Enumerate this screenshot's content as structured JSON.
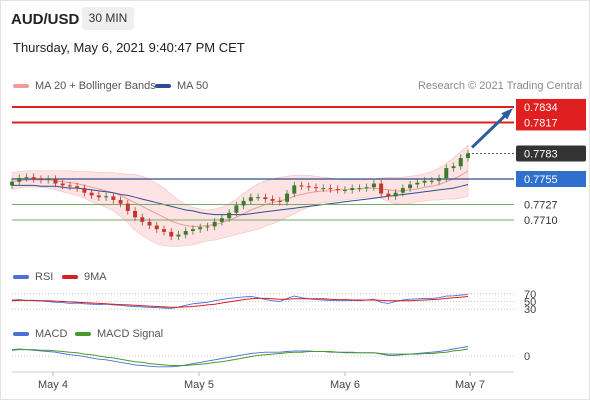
{
  "header": {
    "symbol": "AUD/USD",
    "timeframe": "30 MIN",
    "timestamp": "Thursday, May 6, 2021 9:40:47 PM CET"
  },
  "legends": {
    "main": [
      {
        "label": "MA 20 + Bollinger Bands",
        "color": "#f09a9a"
      },
      {
        "label": "MA 50",
        "color": "#2e4e8f"
      }
    ],
    "rsi": [
      {
        "label": "RSI",
        "color": "#4a6fd6"
      },
      {
        "label": "9MA",
        "color": "#d62020"
      }
    ],
    "macd": [
      {
        "label": "MACD",
        "color": "#4a6fd6"
      },
      {
        "label": "MACD Signal",
        "color": "#4a9a2a"
      }
    ]
  },
  "copyright": "Research © 2021 Trading Central",
  "colors": {
    "resistance": "#e02020",
    "pivot": "#2e4e8f",
    "support": "#7aa86a",
    "current": "#333333",
    "arrow": "#2e5d9e",
    "band_fill": "#fde3e3",
    "candle_up": "#3a7a2a",
    "candle_down": "#c0392b"
  },
  "chart_data": {
    "type": "candlestick",
    "x_ticks": [
      "May 4",
      "May 5",
      "May 6",
      "May 7"
    ],
    "price_ylim": [
      0.7664,
      0.7846
    ],
    "levels": [
      {
        "label": "0.7834",
        "value": 0.7834,
        "kind": "resistance"
      },
      {
        "label": "0.7817",
        "value": 0.7817,
        "kind": "resistance"
      },
      {
        "label": "0.7783",
        "value": 0.7783,
        "kind": "current"
      },
      {
        "label": "0.7755",
        "value": 0.7755,
        "kind": "pivot"
      },
      {
        "label": "0.7727",
        "value": 0.7727,
        "kind": "support"
      },
      {
        "label": "0.7710",
        "value": 0.771,
        "kind": "support"
      }
    ],
    "price_close": [
      0.7752,
      0.7756,
      0.7757,
      0.7755,
      0.7754,
      0.7755,
      0.775,
      0.7748,
      0.7747,
      0.7745,
      0.774,
      0.7737,
      0.7735,
      0.7736,
      0.7732,
      0.7728,
      0.772,
      0.7713,
      0.7708,
      0.7704,
      0.77,
      0.7697,
      0.7692,
      0.7694,
      0.7698,
      0.77,
      0.7702,
      0.7703,
      0.7708,
      0.7712,
      0.7718,
      0.7726,
      0.7731,
      0.7735,
      0.7735,
      0.7733,
      0.7731,
      0.773,
      0.7739,
      0.7748,
      0.7747,
      0.7746,
      0.7745,
      0.7745,
      0.7744,
      0.7743,
      0.7743,
      0.7745,
      0.7745,
      0.7746,
      0.775,
      0.7739,
      0.7736,
      0.774,
      0.7745,
      0.7749,
      0.7751,
      0.7753,
      0.7753,
      0.7756,
      0.7767,
      0.7769,
      0.7778,
      0.7783
    ],
    "ma20": [
      0.7752,
      0.7753,
      0.7754,
      0.7754,
      0.7754,
      0.7754,
      0.7753,
      0.7752,
      0.7751,
      0.775,
      0.7748,
      0.7746,
      0.7744,
      0.7742,
      0.774,
      0.7737,
      0.7733,
      0.7729,
      0.7725,
      0.7721,
      0.7717,
      0.7713,
      0.7709,
      0.7706,
      0.7704,
      0.7703,
      0.7703,
      0.7704,
      0.7705,
      0.7707,
      0.771,
      0.7713,
      0.7717,
      0.7721,
      0.7724,
      0.7727,
      0.7729,
      0.7731,
      0.7733,
      0.7736,
      0.7738,
      0.774,
      0.7741,
      0.7742,
      0.7742,
      0.7743,
      0.7743,
      0.7744,
      0.7744,
      0.7745,
      0.7745,
      0.7744,
      0.7743,
      0.7742,
      0.7742,
      0.7743,
      0.7744,
      0.7746,
      0.7747,
      0.7749,
      0.7752,
      0.7755,
      0.7759,
      0.7764
    ],
    "bb_upper": [
      0.7762,
      0.7763,
      0.7764,
      0.7764,
      0.7764,
      0.7764,
      0.7764,
      0.7764,
      0.7764,
      0.7763,
      0.7763,
      0.7763,
      0.7762,
      0.7762,
      0.7762,
      0.7761,
      0.776,
      0.776,
      0.7758,
      0.7755,
      0.775,
      0.7745,
      0.7738,
      0.7732,
      0.7727,
      0.7724,
      0.7722,
      0.7721,
      0.7722,
      0.7724,
      0.7728,
      0.7733,
      0.7739,
      0.7745,
      0.775,
      0.7753,
      0.7755,
      0.7757,
      0.7758,
      0.7759,
      0.7759,
      0.7759,
      0.7758,
      0.7757,
      0.7756,
      0.7755,
      0.7754,
      0.7754,
      0.7754,
      0.7754,
      0.7755,
      0.7756,
      0.7757,
      0.7757,
      0.7757,
      0.7758,
      0.7759,
      0.7761,
      0.7763,
      0.7767,
      0.7772,
      0.7778,
      0.7785,
      0.7792
    ],
    "bb_lower": [
      0.7744,
      0.7745,
      0.7746,
      0.7746,
      0.7746,
      0.7745,
      0.7743,
      0.7741,
      0.7739,
      0.7737,
      0.7734,
      0.773,
      0.7727,
      0.7724,
      0.772,
      0.7714,
      0.7707,
      0.7699,
      0.7693,
      0.7688,
      0.7684,
      0.7682,
      0.7681,
      0.7681,
      0.7682,
      0.7683,
      0.7685,
      0.7687,
      0.7688,
      0.769,
      0.7692,
      0.7694,
      0.7696,
      0.7698,
      0.77,
      0.7703,
      0.7706,
      0.7709,
      0.7713,
      0.7717,
      0.7721,
      0.7724,
      0.7727,
      0.7729,
      0.773,
      0.7731,
      0.7732,
      0.7733,
      0.7734,
      0.7735,
      0.7735,
      0.7734,
      0.773,
      0.7728,
      0.7727,
      0.7728,
      0.773,
      0.7731,
      0.7732,
      0.7732,
      0.7733,
      0.7733,
      0.7734,
      0.7736
    ],
    "ma50": [
      0.7748,
      0.7748,
      0.7748,
      0.7748,
      0.7747,
      0.7747,
      0.7747,
      0.7746,
      0.7745,
      0.7745,
      0.7744,
      0.7743,
      0.7742,
      0.7741,
      0.774,
      0.7738,
      0.7737,
      0.7735,
      0.7733,
      0.7731,
      0.7729,
      0.7727,
      0.7725,
      0.7723,
      0.7721,
      0.772,
      0.7718,
      0.7717,
      0.7716,
      0.7716,
      0.7716,
      0.7716,
      0.7716,
      0.7717,
      0.7718,
      0.7719,
      0.772,
      0.7721,
      0.7722,
      0.7723,
      0.7724,
      0.7725,
      0.7726,
      0.7727,
      0.7728,
      0.7729,
      0.773,
      0.7731,
      0.7732,
      0.7733,
      0.7734,
      0.7735,
      0.7736,
      0.7737,
      0.7738,
      0.7739,
      0.774,
      0.7741,
      0.7742,
      0.7743,
      0.7744,
      0.7745,
      0.7747,
      0.7749
    ],
    "rsi": {
      "levels": [
        70,
        50,
        30
      ],
      "ylim": [
        20,
        80
      ],
      "rsi_values": [
        54,
        55,
        53,
        52,
        51,
        50,
        48,
        47,
        45,
        46,
        44,
        43,
        42,
        43,
        41,
        40,
        38,
        37,
        36,
        35,
        34,
        33,
        32,
        36,
        40,
        44,
        46,
        48,
        52,
        55,
        58,
        60,
        62,
        63,
        60,
        55,
        52,
        50,
        58,
        64,
        60,
        57,
        55,
        54,
        53,
        52,
        52,
        53,
        52,
        54,
        56,
        48,
        45,
        50,
        54,
        56,
        57,
        58,
        58,
        60,
        64,
        65,
        67,
        68
      ],
      "ma9_values": [
        52,
        53,
        53,
        53,
        52,
        52,
        51,
        50,
        49,
        48,
        47,
        46,
        45,
        44,
        43,
        42,
        41,
        40,
        39,
        38,
        37,
        36,
        35,
        35,
        36,
        37,
        39,
        41,
        43,
        46,
        49,
        52,
        55,
        57,
        58,
        58,
        57,
        56,
        56,
        57,
        57,
        57,
        57,
        57,
        56,
        55,
        55,
        54,
        54,
        54,
        54,
        53,
        52,
        52,
        52,
        52,
        53,
        54,
        55,
        56,
        58,
        60,
        61,
        63
      ]
    },
    "macd": {
      "zero_label": "0",
      "ylim": [
        -0.0022,
        0.0022
      ],
      "macd_values": [
        0.001,
        0.0011,
        0.001,
        0.0009,
        0.0008,
        0.0007,
        0.0006,
        0.0004,
        0.0002,
        0.0001,
        -0.0001,
        -0.0003,
        -0.0005,
        -0.0006,
        -0.0008,
        -0.001,
        -0.0012,
        -0.0014,
        -0.0015,
        -0.0016,
        -0.0017,
        -0.0017,
        -0.0017,
        -0.0016,
        -0.0014,
        -0.0012,
        -0.001,
        -0.0008,
        -0.0006,
        -0.0004,
        -0.0002,
        0.0,
        0.0002,
        0.0004,
        0.0005,
        0.0006,
        0.0006,
        0.0006,
        0.0007,
        0.0008,
        0.0008,
        0.0008,
        0.0007,
        0.0007,
        0.0006,
        0.0006,
        0.0005,
        0.0005,
        0.0005,
        0.0005,
        0.0005,
        0.0003,
        0.0001,
        0.0001,
        0.0002,
        0.0003,
        0.0004,
        0.0005,
        0.0006,
        0.0007,
        0.0009,
        0.0011,
        0.0013,
        0.0015
      ],
      "signal_values": [
        0.0009,
        0.001,
        0.001,
        0.001,
        0.0009,
        0.0009,
        0.0008,
        0.0007,
        0.0006,
        0.0005,
        0.0003,
        0.0002,
        0.0,
        -0.0002,
        -0.0003,
        -0.0005,
        -0.0007,
        -0.0009,
        -0.001,
        -0.0012,
        -0.0013,
        -0.0014,
        -0.0015,
        -0.0015,
        -0.0015,
        -0.0014,
        -0.0013,
        -0.0012,
        -0.001,
        -0.0009,
        -0.0007,
        -0.0005,
        -0.0003,
        -0.0001,
        0.0001,
        0.0002,
        0.0003,
        0.0004,
        0.0005,
        0.0006,
        0.0006,
        0.0007,
        0.0007,
        0.0007,
        0.0007,
        0.0006,
        0.0006,
        0.0006,
        0.0005,
        0.0005,
        0.0005,
        0.0004,
        0.0003,
        0.0003,
        0.0003,
        0.0003,
        0.0003,
        0.0004,
        0.0004,
        0.0005,
        0.0006,
        0.0008,
        0.0009,
        0.0011
      ]
    }
  }
}
